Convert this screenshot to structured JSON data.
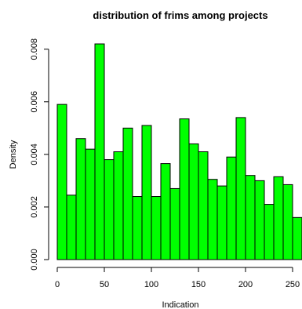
{
  "chart_data": {
    "type": "bar",
    "title": "distribution of frims among projects",
    "xlabel": "Indication",
    "ylabel": "Density",
    "bin_width": 10,
    "bin_starts": [
      0,
      10,
      20,
      30,
      40,
      50,
      60,
      70,
      80,
      90,
      100,
      110,
      120,
      130,
      140,
      150,
      160,
      170,
      180,
      190,
      200,
      210,
      220,
      230,
      240,
      250
    ],
    "values": [
      0.0059,
      0.00245,
      0.0046,
      0.0042,
      0.0082,
      0.0038,
      0.0041,
      0.005,
      0.0024,
      0.0051,
      0.0024,
      0.00365,
      0.0027,
      0.00535,
      0.0044,
      0.0041,
      0.00305,
      0.0028,
      0.0039,
      0.0054,
      0.0032,
      0.003,
      0.0021,
      0.00315,
      0.00285,
      0.0016
    ],
    "x_ticks": [
      0,
      50,
      100,
      150,
      200,
      250
    ],
    "y_ticks": [
      0.0,
      0.002,
      0.004,
      0.006,
      0.008
    ],
    "y_tick_labels": [
      "0.000",
      "0.002",
      "0.004",
      "0.006",
      "0.008"
    ],
    "xlim": [
      0,
      260
    ],
    "ylim": [
      0,
      0.0082
    ],
    "bar_color": "#00ff00",
    "bar_border_color": "#000000",
    "grid": false,
    "legend": "none"
  }
}
